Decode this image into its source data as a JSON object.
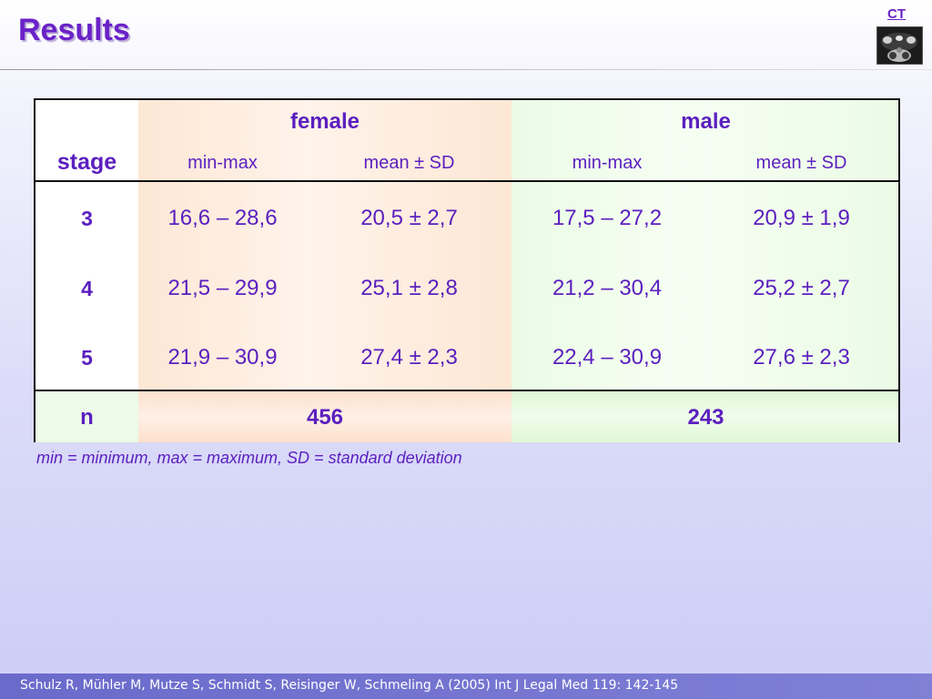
{
  "slide": {
    "title": "Results",
    "corner_label": "CT"
  },
  "table": {
    "stage_header": "stage",
    "groups": [
      {
        "name": "female",
        "sub_headers": [
          "min-max",
          "mean ± SD"
        ]
      },
      {
        "name": "male",
        "sub_headers": [
          "min-max",
          "mean ± SD"
        ]
      }
    ],
    "rows": [
      {
        "stage": "3",
        "female_minmax": "16,6 – 28,6",
        "female_mean": "20,5 ± 2,7",
        "male_minmax": "17,5 – 27,2",
        "male_mean": "20,9 ± 1,9"
      },
      {
        "stage": "4",
        "female_minmax": "21,5 – 29,9",
        "female_mean": "25,1 ± 2,8",
        "male_minmax": "21,2 – 30,4",
        "male_mean": "25,2 ± 2,7"
      },
      {
        "stage": "5",
        "female_minmax": "21,9 – 30,9",
        "female_mean": "27,4 ± 2,3",
        "male_minmax": "22,4 – 30,9",
        "male_mean": "27,6 ± 2,3"
      }
    ],
    "n_row": {
      "label": "n",
      "female": "456",
      "male": "243"
    }
  },
  "footnote": "min = minimum, max = maximum, SD = standard deviation",
  "citation": "Schulz R, Mühler M, Mutze S, Schmidt S, Reisinger W, Schmeling A (2005) Int J Legal Med 119: 142-145",
  "colors": {
    "accent": "#6a22c8",
    "text": "#5b1fbf",
    "female_column": "#fde7d5",
    "male_column": "#ebfbe6",
    "citation_bar": "#7273cf"
  },
  "icons": {
    "ct_thumbnail": "ct-scan-thumbnail-icon"
  }
}
